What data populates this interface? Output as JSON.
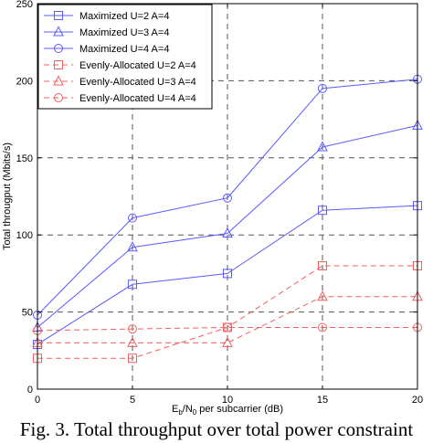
{
  "chart_data": {
    "type": "line",
    "xlabel_main": "E",
    "xlabel_sub1": "b",
    "xlabel_mid": "/N",
    "xlabel_sub2": "0",
    "xlabel_rest": " per subcarrier (dB)",
    "ylabel": "Total througput (Mbits/s)",
    "xlim": [
      0,
      20
    ],
    "ylim": [
      0,
      250
    ],
    "xticks": [
      0,
      5,
      10,
      15,
      20
    ],
    "yticks": [
      0,
      50,
      100,
      150,
      200,
      250
    ],
    "grid": true,
    "legend_position": "top-left",
    "x": [
      0,
      5,
      10,
      15,
      20
    ],
    "series": [
      {
        "name": "Maximized U=2 A=4",
        "values": [
          29,
          68,
          75,
          116,
          119
        ],
        "color": "#5b5bff",
        "marker": "square",
        "dashed": false
      },
      {
        "name": "Maximized U=3 A=4",
        "values": [
          40,
          92,
          101,
          157,
          171
        ],
        "color": "#5b5bff",
        "marker": "triangle",
        "dashed": false
      },
      {
        "name": "Maximized U=4 A=4",
        "values": [
          48,
          111,
          124,
          195,
          201
        ],
        "color": "#5b5bff",
        "marker": "circle",
        "dashed": false
      },
      {
        "name": "Evenly-Allocated U=2 A=4",
        "values": [
          20,
          20,
          40,
          80,
          80
        ],
        "color": "#f06060",
        "marker": "square",
        "dashed": true
      },
      {
        "name": "Evenly-Allocated U=3 A=4",
        "values": [
          30,
          30,
          30,
          60,
          60
        ],
        "color": "#f06060",
        "marker": "triangle",
        "dashed": true
      },
      {
        "name": "Evenly-Allocated U=4 A=4",
        "values": [
          38,
          39,
          40,
          40,
          40
        ],
        "color": "#f06060",
        "marker": "circle",
        "dashed": true
      }
    ]
  },
  "caption": "Fig. 3. Total throughput over total power constraint"
}
